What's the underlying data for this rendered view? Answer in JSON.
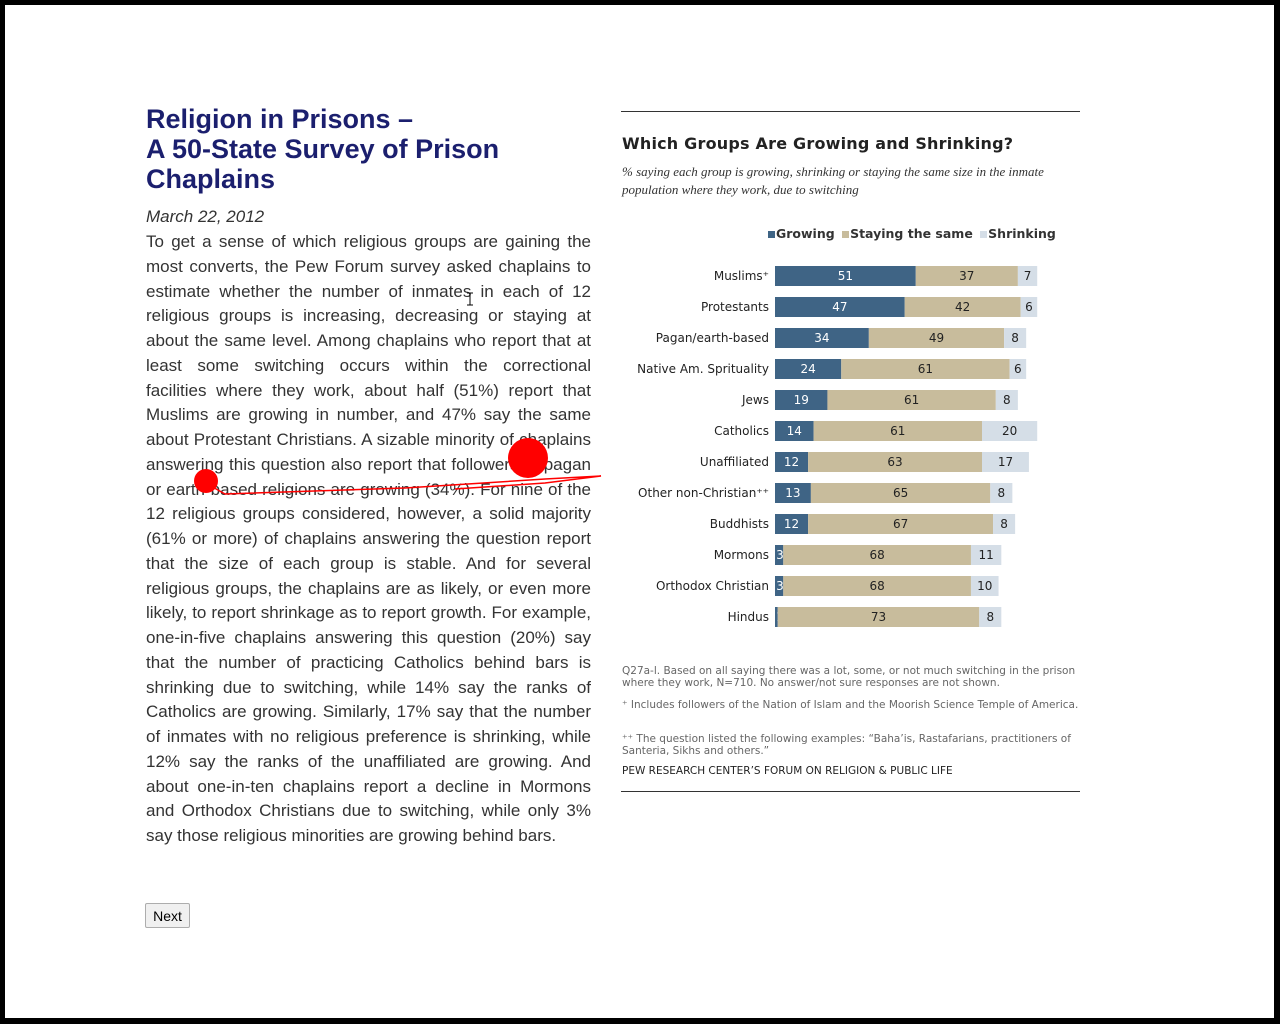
{
  "article": {
    "title_lines": [
      "Religion in Prisons –",
      "A 50-State Survey of Prison",
      "Chaplains"
    ],
    "date": "March 22, 2012",
    "body": "To get a sense of which religious groups are gaining the most converts, the Pew Forum survey asked chaplains to estimate whether the number of inmates in each of 12 religious groups is increasing, decreasing or staying at about the same level. Among chaplains who report that at least some switching occurs within the correctional facilities where they work, about half (51%) report that Muslims are growing in number, and 47% say the same about Protestant Christians. A sizable minority of chaplains answering this question also report that followers of pagan or earth-based religions are growing (34%). For nine of the 12 religious groups considered, however, a solid majority (61% or more) of chaplains answering the question report that the size of each group is stable. And for several religious groups, the chaplains are as likely, or even more likely, to report shrinkage as to report growth. For example, one-in-five chaplains answering this question (20%) say that the number of practicing Catholics behind bars is shrinking due to switching, while 14% say the ranks of Catholics are growing. Similarly, 17% say that the number of inmates with no religious preference is shrinking, while 12% say the ranks of the unaffiliated are growing. And about one-in-ten chaplains report a decline in Mormons and Orthodox Christians due to switching, while only 3% say those religious minorities are growing behind bars."
  },
  "next_button": {
    "label": "Next"
  },
  "colors": {
    "growing": "#3f6485",
    "staying": "#c8bc9c",
    "shrinking": "#d5dee7",
    "title": "#1b1f6e",
    "annotation": "#ff0000"
  },
  "chart_data": {
    "type": "bar",
    "orientation": "horizontal",
    "stacked": true,
    "title": "Which Groups Are Growing and Shrinking?",
    "subtitle": "% saying each group is growing, shrinking or staying the same size in the inmate population where they work, due to switching",
    "legend_position": "top",
    "categories": [
      "Muslims⁺",
      "Protestants",
      "Pagan/earth-based",
      "Native Am. Sprituality",
      "Jews",
      "Catholics",
      "Unaffiliated",
      "Other non-Christian⁺⁺",
      "Buddhists",
      "Mormons",
      "Orthodox Christian",
      "Hindus"
    ],
    "series": [
      {
        "name": "Growing",
        "values": [
          51,
          47,
          34,
          24,
          19,
          14,
          12,
          13,
          12,
          3,
          3,
          1
        ]
      },
      {
        "name": "Staying the same",
        "values": [
          37,
          42,
          49,
          61,
          61,
          61,
          63,
          65,
          67,
          68,
          68,
          73
        ]
      },
      {
        "name": "Shrinking",
        "values": [
          7,
          6,
          8,
          6,
          8,
          20,
          17,
          8,
          8,
          11,
          10,
          8
        ]
      }
    ],
    "notes": [
      "Q27a-l. Based on all saying there was a lot, some, or not much switching in the prison where they work, N=710. No answer/not sure responses are not shown.",
      "⁺ Includes followers of the Nation of Islam and the Moorish Science Temple of America.",
      "⁺⁺ The question listed the following examples: “Baha’is, Rastafarians, practitioners of Santeria, Sikhs and others.”"
    ],
    "source": "PEW RESEARCH CENTER’S FORUM ON RELIGION & PUBLIC LIFE"
  }
}
